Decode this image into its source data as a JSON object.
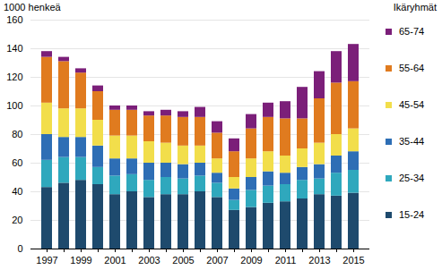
{
  "chart_data": {
    "type": "bar",
    "stacked": true,
    "y_label": "1000 henkeä",
    "legend_title": "Ikäryhmät",
    "legend": "right",
    "grid": true,
    "categories": [
      "1997",
      null,
      "1999",
      null,
      "2001",
      null,
      "2003",
      null,
      "2005",
      null,
      "2007",
      null,
      "2009",
      null,
      "2011",
      null,
      "2013",
      null,
      "2015"
    ],
    "ylim": [
      0,
      160
    ],
    "yticks": [
      0,
      20,
      40,
      60,
      80,
      100,
      120,
      140,
      160
    ],
    "series": [
      {
        "name": "15-24",
        "color": "#1e4a6d",
        "values": [
          43,
          46,
          48,
          45,
          38,
          40,
          36,
          38,
          38,
          40,
          36,
          27,
          29,
          32,
          33,
          35,
          38,
          37,
          39
        ]
      },
      {
        "name": "25-34",
        "color": "#2fa8bd",
        "values": [
          19,
          18,
          16,
          12,
          13,
          12,
          12,
          12,
          11,
          11,
          10,
          7,
          12,
          12,
          12,
          13,
          11,
          16,
          16
        ]
      },
      {
        "name": "35-44",
        "color": "#2e6eb5",
        "values": [
          18,
          14,
          14,
          15,
          12,
          11,
          12,
          10,
          10,
          9,
          7,
          8,
          9,
          10,
          8,
          9,
          10,
          12,
          13
        ]
      },
      {
        "name": "45-54",
        "color": "#f2de4b",
        "values": [
          22,
          20,
          20,
          18,
          16,
          16,
          15,
          14,
          13,
          12,
          10,
          8,
          13,
          14,
          12,
          13,
          15,
          15,
          16
        ]
      },
      {
        "name": "55-64",
        "color": "#e07b1f",
        "values": [
          32,
          33,
          25,
          20,
          18,
          18,
          18,
          19,
          20,
          20,
          18,
          18,
          21,
          24,
          26,
          21,
          31,
          36,
          33
        ]
      },
      {
        "name": "65-74",
        "color": "#7b1f79",
        "values": [
          4,
          3,
          3,
          4,
          3,
          3,
          3,
          4,
          4,
          7,
          8,
          9,
          10,
          10,
          12,
          22,
          19,
          22,
          26
        ]
      }
    ]
  }
}
